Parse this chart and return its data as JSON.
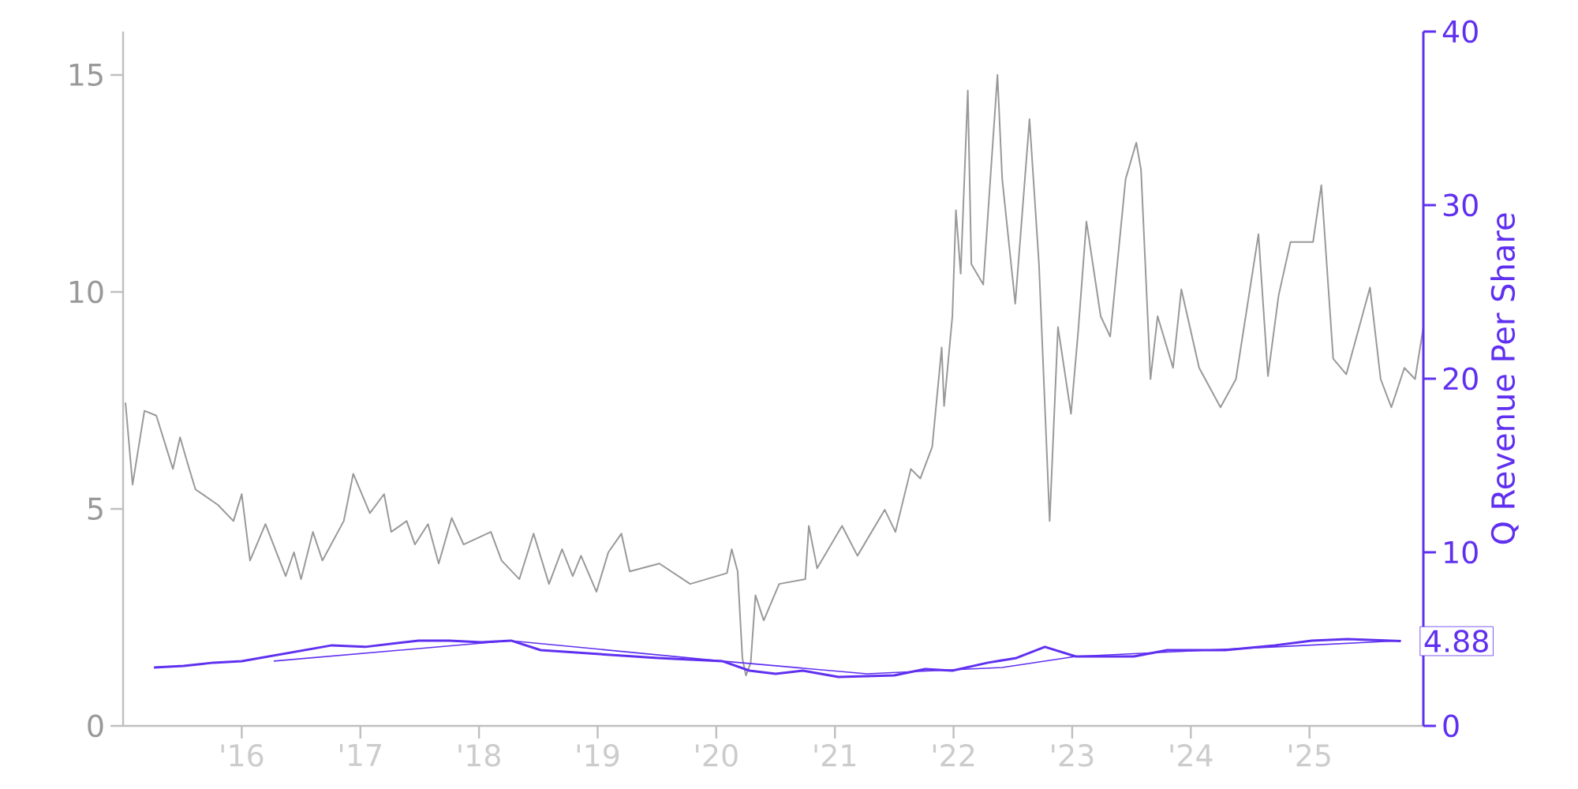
{
  "chart_data": {
    "type": "line",
    "y2label": "Q Revenue Per Share",
    "xlim": [
      2015.0,
      2025.96
    ],
    "xticks": [
      {
        "value": 2016,
        "label": "'16"
      },
      {
        "value": 2017,
        "label": "'17"
      },
      {
        "value": 2018,
        "label": "'18"
      },
      {
        "value": 2019,
        "label": "'19"
      },
      {
        "value": 2020,
        "label": "'20"
      },
      {
        "value": 2021,
        "label": "'21"
      },
      {
        "value": 2022,
        "label": "'22"
      },
      {
        "value": 2023,
        "label": "'23"
      },
      {
        "value": 2024,
        "label": "'24"
      },
      {
        "value": 2025,
        "label": "'25"
      }
    ],
    "ylim": [
      0,
      16
    ],
    "yticks": [
      0,
      5,
      10,
      15
    ],
    "y2lim": [
      0,
      40
    ],
    "y2ticks": [
      0,
      10,
      20,
      30,
      40
    ],
    "series": [
      {
        "color": "#999999",
        "x": [
          2015.02,
          2015.08,
          2015.18,
          2015.28,
          2015.42,
          2015.48,
          2015.55,
          2015.61,
          2015.8,
          2015.93,
          2016.0,
          2016.07,
          2016.2,
          2016.37,
          2016.44,
          2016.5,
          2016.6,
          2016.68,
          2016.86,
          2016.94,
          2017.08,
          2017.2,
          2017.26,
          2017.39,
          2017.46,
          2017.57,
          2017.66,
          2017.77,
          2017.87,
          2018.1,
          2018.19,
          2018.34,
          2018.46,
          2018.59,
          2018.7,
          2018.79,
          2018.86,
          2018.99,
          2019.09,
          2019.2,
          2019.27,
          2019.52,
          2019.78,
          2020.09,
          2020.13,
          2020.18,
          2020.22,
          2020.25,
          2020.29,
          2020.33,
          2020.4,
          2020.53,
          2020.75,
          2020.78,
          2020.85,
          2021.06,
          2021.19,
          2021.42,
          2021.51,
          2021.64,
          2021.72,
          2021.82,
          2021.9,
          2021.92,
          2021.99,
          2022.02,
          2022.06,
          2022.12,
          2022.15,
          2022.25,
          2022.31,
          2022.37,
          2022.41,
          2022.52,
          2022.64,
          2022.72,
          2022.81,
          2022.88,
          2022.99,
          2023.05,
          2023.12,
          2023.24,
          2023.32,
          2023.45,
          2023.54,
          2023.58,
          2023.66,
          2023.72,
          2023.85,
          2023.92,
          2024.07,
          2024.25,
          2024.38,
          2024.57,
          2024.65,
          2024.74,
          2024.84,
          2025.03,
          2025.1,
          2025.2,
          2025.31,
          2025.51,
          2025.6,
          2025.69,
          2025.8,
          2025.89,
          2025.96
        ],
        "values": [
          7.45,
          5.56,
          7.26,
          7.15,
          5.92,
          6.65,
          5.99,
          5.45,
          5.09,
          4.72,
          5.34,
          3.81,
          4.65,
          3.45,
          4.0,
          3.38,
          4.47,
          3.81,
          4.72,
          5.81,
          4.9,
          5.34,
          4.47,
          4.72,
          4.18,
          4.65,
          3.74,
          4.79,
          4.18,
          4.47,
          3.81,
          3.38,
          4.43,
          3.27,
          4.07,
          3.45,
          3.92,
          3.09,
          4.0,
          4.43,
          3.56,
          3.74,
          3.27,
          3.52,
          4.07,
          3.56,
          1.56,
          1.16,
          1.45,
          3.01,
          2.43,
          3.27,
          3.38,
          4.61,
          3.63,
          4.61,
          3.92,
          4.98,
          4.47,
          5.92,
          5.7,
          6.43,
          8.72,
          7.37,
          9.44,
          11.88,
          10.42,
          14.64,
          10.64,
          10.17,
          12.6,
          15.0,
          12.6,
          9.73,
          13.98,
          10.64,
          4.72,
          9.19,
          7.19,
          9.08,
          11.62,
          9.44,
          8.97,
          12.6,
          13.44,
          12.82,
          7.99,
          9.44,
          8.25,
          10.06,
          8.25,
          7.34,
          7.99,
          11.33,
          8.06,
          9.92,
          11.15,
          11.15,
          12.46,
          8.46,
          8.1,
          10.1,
          7.99,
          7.34,
          8.25,
          7.99,
          9.19
        ]
      },
      {
        "color": "#6030f0",
        "axis": "y2",
        "x": [
          2015.26,
          2015.51,
          2015.76,
          2016.0,
          2016.76,
          2017.04,
          2017.49,
          2017.75,
          2018.02,
          2018.27,
          2018.52,
          2019.51,
          2020.05,
          2020.28,
          2020.5,
          2020.73,
          2021.03,
          2021.5,
          2021.76,
          2021.99,
          2022.29,
          2022.53,
          2022.77,
          2023.03,
          2023.52,
          2023.8,
          2024.29,
          2024.71,
          2025.02,
          2025.32,
          2025.77
        ],
        "values": [
          3.36,
          3.45,
          3.64,
          3.73,
          4.64,
          4.55,
          4.91,
          4.91,
          4.82,
          4.91,
          4.36,
          3.91,
          3.73,
          3.18,
          3.0,
          3.18,
          2.82,
          2.91,
          3.27,
          3.18,
          3.64,
          3.91,
          4.55,
          4.0,
          4.0,
          4.36,
          4.36,
          4.64,
          4.91,
          5.0,
          4.88
        ],
        "value_labels": [
          null,
          null,
          null,
          null,
          null,
          null,
          null,
          null,
          null,
          null,
          null,
          null,
          null,
          null,
          null,
          null,
          null,
          null,
          null,
          null,
          null,
          null,
          null,
          null,
          null,
          null,
          null,
          null,
          null,
          null,
          "4.88"
        ]
      },
      {
        "type": "line",
        "color": "#6030f0",
        "axis": "y2",
        "x": [
          2016.27,
          2018.26,
          2020.05,
          2021.27,
          2022.41,
          2023.03,
          2024.71,
          2025.77
        ],
        "values": [
          3.73,
          4.91,
          3.73,
          3.0,
          3.36,
          4.0,
          4.55,
          4.91
        ]
      }
    ]
  }
}
